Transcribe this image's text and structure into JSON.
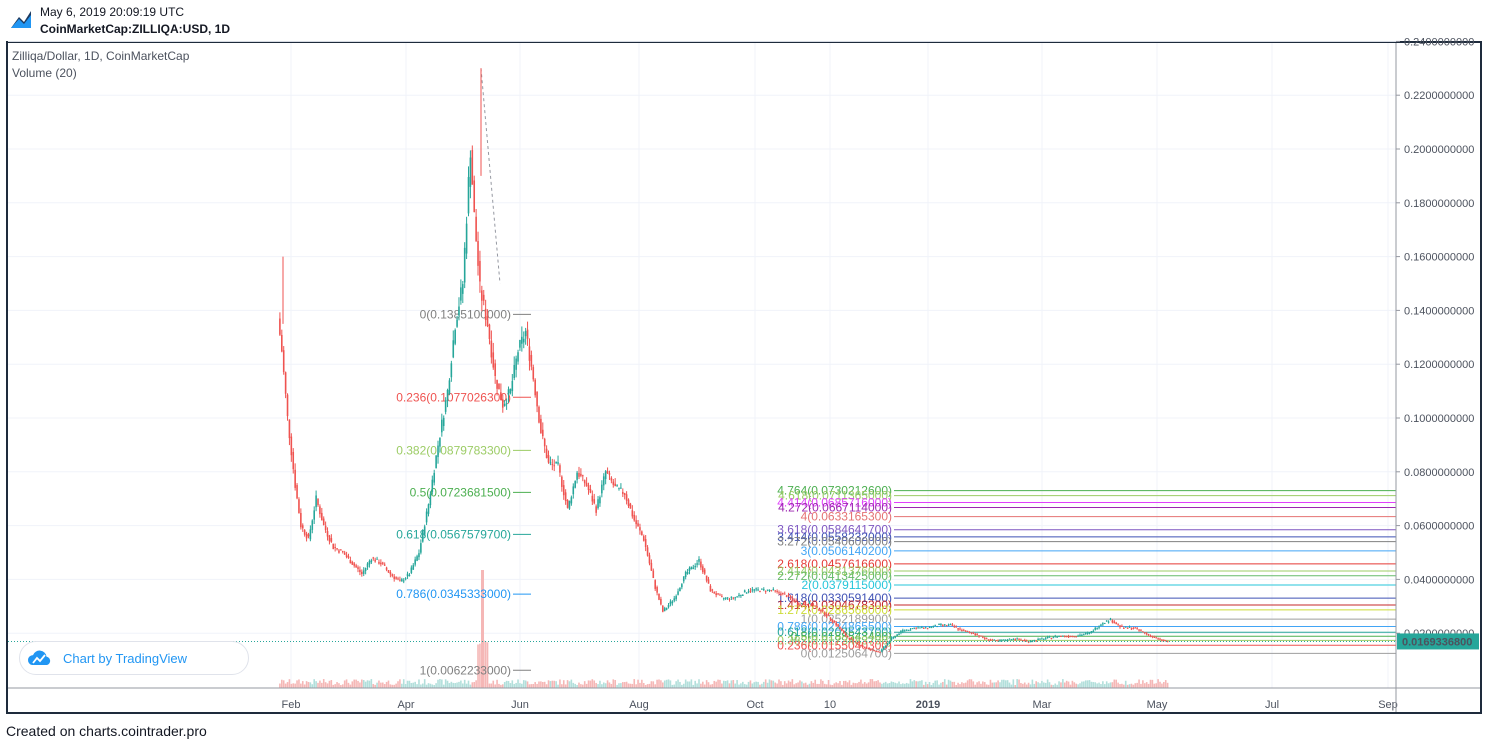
{
  "header": {
    "date": "May 6, 2019 20:09:19 UTC",
    "symbol": "CoinMarketCap:ZILLIQA:USD, 1D"
  },
  "legend": {
    "title": "Zilliqa/Dollar, 1D, CoinMarketCap",
    "volume": "Volume (20)"
  },
  "badge": {
    "text": "Chart by TradingView"
  },
  "footer": {
    "text": "Created on charts.cointrader.pro"
  },
  "colors": {
    "up": "#26a69a",
    "down": "#ef5350",
    "vol_up": "#b2dfdb",
    "vol_down": "#f5b7b6",
    "last_price": "#26a69a"
  },
  "chart_data": {
    "type": "candlestick",
    "x_ticks": [
      "Feb",
      "Apr",
      "Jun",
      "Aug",
      "Oct",
      "10",
      "2019",
      "Mar",
      "May",
      "Jul",
      "Sep"
    ],
    "y_ticks": [
      "0.2400000000",
      "0.2200000000",
      "0.2000000000",
      "0.1800000000",
      "0.1600000000",
      "0.1400000000",
      "0.1200000000",
      "0.1000000000",
      "0.0800000000",
      "0.0600000000",
      "0.0400000000",
      "0.0200000000"
    ],
    "ylim": [
      0.0,
      0.245
    ],
    "last_price": "0.0169336800",
    "price_path": [
      [
        "2018-01-24",
        0.137
      ],
      [
        "2018-01-26",
        0.125
      ],
      [
        "2018-01-29",
        0.1
      ],
      [
        "2018-02-02",
        0.075
      ],
      [
        "2018-02-05",
        0.06
      ],
      [
        "2018-02-09",
        0.055
      ],
      [
        "2018-02-13",
        0.07
      ],
      [
        "2018-02-17",
        0.06
      ],
      [
        "2018-02-22",
        0.052
      ],
      [
        "2018-02-27",
        0.05
      ],
      [
        "2018-03-04",
        0.046
      ],
      [
        "2018-03-09",
        0.042
      ],
      [
        "2018-03-14",
        0.048
      ],
      [
        "2018-03-19",
        0.046
      ],
      [
        "2018-03-24",
        0.042
      ],
      [
        "2018-03-29",
        0.039
      ],
      [
        "2018-04-03",
        0.042
      ],
      [
        "2018-04-08",
        0.05
      ],
      [
        "2018-04-13",
        0.068
      ],
      [
        "2018-04-18",
        0.09
      ],
      [
        "2018-04-23",
        0.11
      ],
      [
        "2018-04-27",
        0.135
      ],
      [
        "2018-05-01",
        0.15
      ],
      [
        "2018-05-05",
        0.2
      ],
      [
        "2018-05-07",
        0.175
      ],
      [
        "2018-05-10",
        0.148
      ],
      [
        "2018-05-14",
        0.135
      ],
      [
        "2018-05-18",
        0.115
      ],
      [
        "2018-05-22",
        0.105
      ],
      [
        "2018-05-26",
        0.11
      ],
      [
        "2018-05-30",
        0.125
      ],
      [
        "2018-06-03",
        0.132
      ],
      [
        "2018-06-07",
        0.115
      ],
      [
        "2018-06-11",
        0.095
      ],
      [
        "2018-06-15",
        0.083
      ],
      [
        "2018-06-20",
        0.082
      ],
      [
        "2018-06-25",
        0.066
      ],
      [
        "2018-06-30",
        0.08
      ],
      [
        "2018-07-05",
        0.075
      ],
      [
        "2018-07-10",
        0.066
      ],
      [
        "2018-07-15",
        0.08
      ],
      [
        "2018-07-20",
        0.074
      ],
      [
        "2018-07-25",
        0.072
      ],
      [
        "2018-07-30",
        0.062
      ],
      [
        "2018-08-04",
        0.055
      ],
      [
        "2018-08-10",
        0.037
      ],
      [
        "2018-08-14",
        0.028
      ],
      [
        "2018-08-20",
        0.033
      ],
      [
        "2018-08-26",
        0.042
      ],
      [
        "2018-09-02",
        0.047
      ],
      [
        "2018-09-08",
        0.036
      ],
      [
        "2018-09-14",
        0.033
      ],
      [
        "2018-09-20",
        0.033
      ],
      [
        "2018-09-28",
        0.036
      ],
      [
        "2018-10-04",
        0.036
      ],
      [
        "2018-10-10",
        0.036
      ],
      [
        "2018-10-18",
        0.034
      ],
      [
        "2018-10-24",
        0.031
      ],
      [
        "2018-10-30",
        0.031
      ],
      [
        "2018-11-06",
        0.028
      ],
      [
        "2018-11-12",
        0.024
      ],
      [
        "2018-11-18",
        0.019
      ],
      [
        "2018-11-24",
        0.016
      ],
      [
        "2018-11-30",
        0.014
      ],
      [
        "2018-12-06",
        0.013
      ],
      [
        "2018-12-12",
        0.018
      ],
      [
        "2018-12-18",
        0.021
      ],
      [
        "2018-12-24",
        0.022
      ],
      [
        "2018-12-30",
        0.022
      ],
      [
        "2019-01-06",
        0.023
      ],
      [
        "2019-01-12",
        0.023
      ],
      [
        "2019-01-18",
        0.021
      ],
      [
        "2019-01-24",
        0.02
      ],
      [
        "2019-01-30",
        0.018
      ],
      [
        "2019-02-06",
        0.017
      ],
      [
        "2019-02-14",
        0.018
      ],
      [
        "2019-02-22",
        0.017
      ],
      [
        "2019-03-02",
        0.018
      ],
      [
        "2019-03-10",
        0.019
      ],
      [
        "2019-03-18",
        0.019
      ],
      [
        "2019-03-26",
        0.02
      ],
      [
        "2019-04-02",
        0.024
      ],
      [
        "2019-04-06",
        0.025
      ],
      [
        "2019-04-12",
        0.022
      ],
      [
        "2019-04-18",
        0.022
      ],
      [
        "2019-04-24",
        0.02
      ],
      [
        "2019-04-30",
        0.018
      ],
      [
        "2019-05-06",
        0.0169
      ]
    ],
    "fib_left": [
      {
        "ratio": "0",
        "label": "0(0.1385100000)",
        "price": 0.13851
      },
      {
        "ratio": "0.236",
        "label": "0.236(0.1077026300)",
        "price": 0.1077026
      },
      {
        "ratio": "0.382",
        "label": "0.382(0.0879783300)",
        "price": 0.0879783
      },
      {
        "ratio": "0.5",
        "label": "0.5(0.0723681500)",
        "price": 0.0723682
      },
      {
        "ratio": "0.618",
        "label": "0.618(0.0567579700)",
        "price": 0.056758
      },
      {
        "ratio": "0.786",
        "label": "0.786(0.0345333000)",
        "price": 0.0345333
      },
      {
        "ratio": "1",
        "label": "1(0.0062233000)",
        "price": 0.0062233
      }
    ],
    "fib_right": [
      {
        "label": "4.764(0.0730212600)",
        "price": 0.0730213,
        "color": "#4caf50"
      },
      {
        "label": "4.618(0.0711365000)",
        "price": 0.0711365,
        "color": "#9ccc65"
      },
      {
        "label": "4.414(0.0685716000)",
        "price": 0.0685716,
        "color": "#e040fb"
      },
      {
        "label": "4.272(0.0667114000)",
        "price": 0.0667114,
        "color": "#9c27b0"
      },
      {
        "label": "4(0.0633165300)",
        "price": 0.0633165,
        "color": "#e57373"
      },
      {
        "label": "3.618(0.0584641700)",
        "price": 0.0584642,
        "color": "#7e57c2"
      },
      {
        "label": "3.414(0.0558232000)",
        "price": 0.0558232,
        "color": "#3f51b5"
      },
      {
        "label": "3.272(0.0540600000)",
        "price": 0.05406,
        "color": "#808080"
      },
      {
        "label": "3(0.0506140200)",
        "price": 0.050614,
        "color": "#42a5f5"
      },
      {
        "label": "2.618(0.0457616600)",
        "price": 0.0457617,
        "color": "#e53935"
      },
      {
        "label": "2.414(0.0431376000)",
        "price": 0.0431376,
        "color": "#9ccc65"
      },
      {
        "label": "2.272(0.0413425000)",
        "price": 0.0413425,
        "color": "#66bb6a"
      },
      {
        "label": "2(0.0379115000)",
        "price": 0.0379115,
        "color": "#26c6da"
      },
      {
        "label": "1.618(0.0330591400)",
        "price": 0.0330591,
        "color": "#3f51b5"
      },
      {
        "label": "1.414(0.0304678300)",
        "price": 0.0304678,
        "color": "#c62828"
      },
      {
        "label": "1.272(0.0286566000)",
        "price": 0.0286566,
        "color": "#cddc39"
      },
      {
        "label": "1(0.0252189900)",
        "price": 0.025219,
        "color": "#9e9e9e"
      },
      {
        "label": "0.786(0.0224865500)",
        "price": 0.0224866,
        "color": "#42a5f5"
      },
      {
        "label": "0.618(0.0203543700)",
        "price": 0.0203544,
        "color": "#26a69a"
      },
      {
        "label": "0.5(0.0188543400)",
        "price": 0.0188543,
        "color": "#4caf50"
      },
      {
        "label": "0.382(0.0173483700)",
        "price": 0.0173484,
        "color": "#9ccc65"
      },
      {
        "label": "0.236(0.0155040300)",
        "price": 0.015504,
        "color": "#ef5350"
      },
      {
        "label": "0(0.0125064700)",
        "price": 0.0125065,
        "color": "#9e9e9e"
      }
    ]
  }
}
